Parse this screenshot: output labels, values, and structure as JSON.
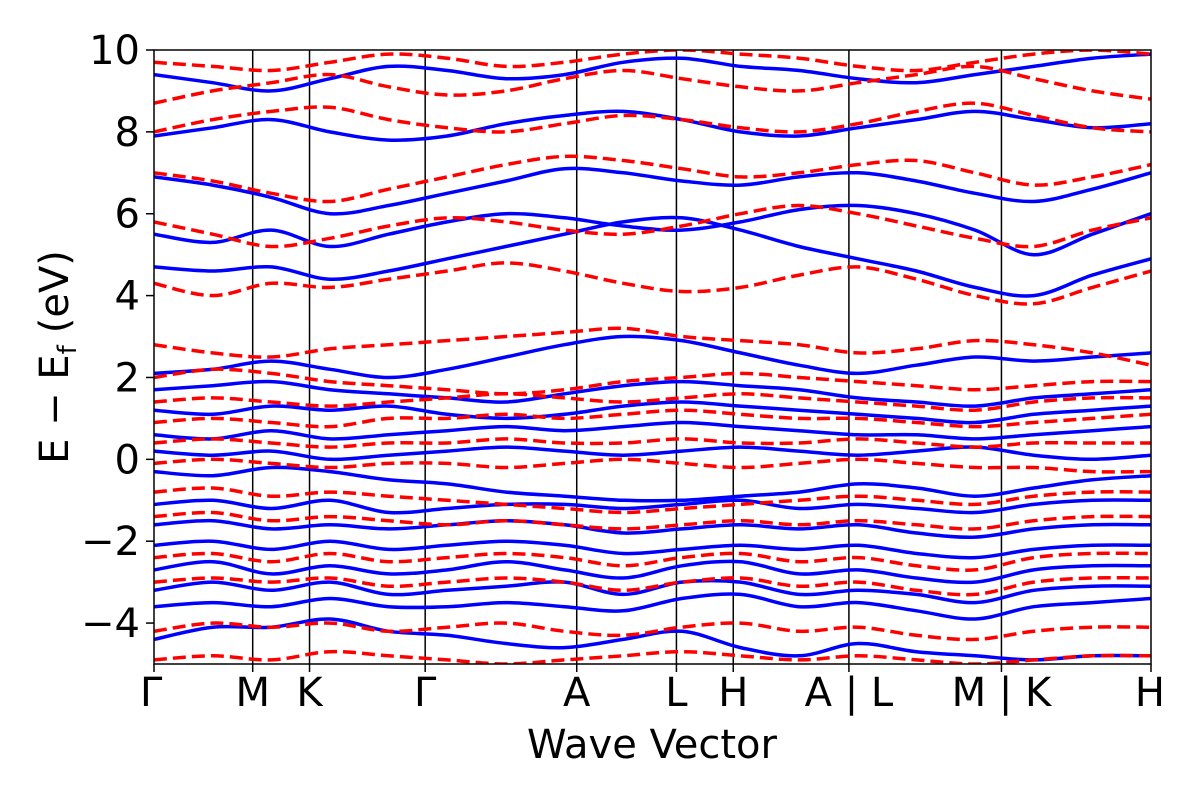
{
  "chart_data": {
    "type": "line",
    "xlabel": "Wave Vector",
    "ylabel": "E − E",
    "ylabel_subscript": "f",
    "ylabel_unit": "(eV)",
    "ylim": [
      -5,
      10
    ],
    "yticks": [
      {
        "value": -4,
        "label": "−4"
      },
      {
        "value": -2,
        "label": "−2"
      },
      {
        "value": 0,
        "label": "0"
      },
      {
        "value": 2,
        "label": "2"
      },
      {
        "value": 4,
        "label": "4"
      },
      {
        "value": 6,
        "label": "6"
      },
      {
        "value": 8,
        "label": "8"
      },
      {
        "value": 10,
        "label": "10"
      }
    ],
    "xlim": [
      0,
      1
    ],
    "kpoints": [
      {
        "label": "Γ",
        "x": 0.0
      },
      {
        "label": "M",
        "x": 0.099
      },
      {
        "label": "K",
        "x": 0.156
      },
      {
        "label": "Γ",
        "x": 0.272
      },
      {
        "label": "A",
        "x": 0.424
      },
      {
        "label": "L",
        "x": 0.524
      },
      {
        "label": "H",
        "x": 0.581
      },
      {
        "label": "A | L",
        "x": 0.697
      },
      {
        "label": "M | K",
        "x": 0.85
      },
      {
        "label": "H",
        "x": 1.0
      }
    ],
    "grid": false,
    "series": [
      {
        "style": "solid",
        "color": "#0000ff",
        "bands": [
          [
            -4.4,
            -4.1,
            -4.1,
            -3.9,
            -4.2,
            -4.3,
            -4.5,
            -4.6,
            -4.4,
            -4.2,
            -4.6,
            -4.8,
            -4.5,
            -4.7,
            -4.8,
            -4.9,
            -4.8,
            -4.8
          ],
          [
            -3.6,
            -3.5,
            -3.6,
            -3.4,
            -3.6,
            -3.6,
            -3.5,
            -3.6,
            -3.7,
            -3.4,
            -3.3,
            -3.6,
            -3.5,
            -3.7,
            -3.9,
            -3.6,
            -3.5,
            -3.4
          ],
          [
            -3.2,
            -3.0,
            -3.2,
            -3.0,
            -3.3,
            -3.2,
            -3.1,
            -3.0,
            -3.3,
            -3.0,
            -3.0,
            -3.3,
            -3.2,
            -3.3,
            -3.5,
            -3.2,
            -3.1,
            -3.1
          ],
          [
            -2.7,
            -2.5,
            -2.8,
            -2.6,
            -2.8,
            -2.7,
            -2.5,
            -2.7,
            -2.9,
            -2.6,
            -2.5,
            -2.8,
            -2.7,
            -2.9,
            -3.0,
            -2.7,
            -2.6,
            -2.6
          ],
          [
            -2.1,
            -2.0,
            -2.2,
            -2.0,
            -2.2,
            -2.1,
            -2.0,
            -2.1,
            -2.3,
            -2.2,
            -2.1,
            -2.2,
            -2.1,
            -2.3,
            -2.4,
            -2.2,
            -2.1,
            -2.1
          ],
          [
            -1.6,
            -1.5,
            -1.7,
            -1.6,
            -1.7,
            -1.6,
            -1.5,
            -1.6,
            -1.8,
            -1.7,
            -1.6,
            -1.7,
            -1.6,
            -1.8,
            -1.9,
            -1.7,
            -1.6,
            -1.6
          ],
          [
            -1.1,
            -1.0,
            -1.2,
            -1.0,
            -1.3,
            -1.2,
            -1.1,
            -1.1,
            -1.2,
            -1.1,
            -1.0,
            -1.2,
            -1.1,
            -1.2,
            -1.3,
            -1.1,
            -1.0,
            -1.0
          ],
          [
            -0.3,
            -0.4,
            -0.2,
            -0.3,
            -0.5,
            -0.6,
            -0.8,
            -0.9,
            -1.0,
            -1.0,
            -0.9,
            -0.8,
            -0.6,
            -0.7,
            -0.9,
            -0.7,
            -0.5,
            -0.4
          ],
          [
            0.2,
            0.1,
            0.2,
            0.0,
            0.1,
            0.2,
            0.3,
            0.2,
            0.1,
            0.2,
            0.3,
            0.2,
            0.1,
            0.2,
            0.3,
            0.1,
            0.0,
            0.1
          ],
          [
            0.6,
            0.5,
            0.7,
            0.5,
            0.6,
            0.7,
            0.8,
            0.7,
            0.8,
            0.9,
            0.8,
            0.7,
            0.6,
            0.6,
            0.5,
            0.6,
            0.7,
            0.8
          ],
          [
            1.2,
            1.1,
            1.3,
            1.2,
            1.3,
            1.1,
            1.0,
            1.1,
            1.3,
            1.4,
            1.3,
            1.2,
            1.1,
            1.0,
            0.9,
            1.1,
            1.2,
            1.3
          ],
          [
            1.7,
            1.8,
            1.9,
            1.7,
            1.6,
            1.5,
            1.4,
            1.6,
            1.8,
            1.9,
            1.8,
            1.7,
            1.5,
            1.4,
            1.3,
            1.5,
            1.6,
            1.7
          ],
          [
            2.1,
            2.2,
            2.4,
            2.2,
            2.0,
            2.2,
            2.5,
            2.8,
            3.0,
            2.9,
            2.6,
            2.3,
            2.1,
            2.3,
            2.5,
            2.4,
            2.5,
            2.6
          ],
          [
            4.7,
            4.6,
            4.7,
            4.4,
            4.6,
            4.9,
            5.2,
            5.5,
            5.8,
            5.9,
            5.6,
            5.2,
            4.9,
            4.6,
            4.2,
            4.0,
            4.5,
            4.9
          ],
          [
            5.5,
            5.3,
            5.6,
            5.2,
            5.5,
            5.8,
            6.0,
            5.9,
            5.7,
            5.6,
            5.8,
            6.1,
            6.2,
            6.0,
            5.6,
            5.0,
            5.5,
            6.0
          ],
          [
            6.9,
            6.7,
            6.4,
            6.0,
            6.2,
            6.5,
            6.8,
            7.1,
            7.0,
            6.8,
            6.7,
            6.9,
            7.0,
            6.8,
            6.5,
            6.3,
            6.6,
            7.0
          ],
          [
            7.9,
            8.1,
            8.3,
            8.0,
            7.8,
            7.9,
            8.2,
            8.4,
            8.5,
            8.3,
            8.0,
            7.9,
            8.1,
            8.3,
            8.5,
            8.3,
            8.1,
            8.2
          ],
          [
            9.4,
            9.2,
            9.0,
            9.3,
            9.6,
            9.5,
            9.3,
            9.4,
            9.7,
            9.8,
            9.6,
            9.5,
            9.3,
            9.2,
            9.4,
            9.6,
            9.8,
            9.9
          ]
        ]
      },
      {
        "style": "dashed",
        "color": "#ff0000",
        "bands": [
          [
            -4.9,
            -4.8,
            -4.9,
            -4.7,
            -4.8,
            -4.9,
            -5.0,
            -4.9,
            -4.8,
            -4.7,
            -4.8,
            -4.9,
            -4.8,
            -4.9,
            -5.0,
            -4.9,
            -4.8,
            -4.8
          ],
          [
            -4.2,
            -4.0,
            -4.1,
            -4.0,
            -4.2,
            -4.1,
            -4.0,
            -4.2,
            -4.3,
            -4.1,
            -4.0,
            -4.2,
            -4.1,
            -4.3,
            -4.4,
            -4.2,
            -4.1,
            -4.1
          ],
          [
            -3.0,
            -2.9,
            -3.0,
            -2.9,
            -3.1,
            -3.0,
            -2.9,
            -3.0,
            -3.2,
            -3.0,
            -2.9,
            -3.1,
            -3.0,
            -3.2,
            -3.3,
            -3.0,
            -2.9,
            -2.9
          ],
          [
            -2.4,
            -2.3,
            -2.5,
            -2.3,
            -2.5,
            -2.4,
            -2.3,
            -2.4,
            -2.6,
            -2.4,
            -2.3,
            -2.5,
            -2.4,
            -2.6,
            -2.7,
            -2.4,
            -2.3,
            -2.3
          ],
          [
            -1.4,
            -1.3,
            -1.5,
            -1.4,
            -1.5,
            -1.6,
            -1.5,
            -1.6,
            -1.7,
            -1.6,
            -1.5,
            -1.6,
            -1.5,
            -1.6,
            -1.7,
            -1.5,
            -1.4,
            -1.4
          ],
          [
            -0.8,
            -0.7,
            -0.9,
            -0.8,
            -0.9,
            -1.0,
            -1.1,
            -1.2,
            -1.3,
            -1.2,
            -1.1,
            -1.0,
            -0.9,
            -1.0,
            -1.1,
            -0.9,
            -0.8,
            -0.8
          ],
          [
            -0.1,
            0.0,
            -0.1,
            -0.2,
            -0.1,
            -0.1,
            -0.2,
            -0.1,
            0.0,
            -0.1,
            -0.2,
            -0.1,
            0.0,
            -0.1,
            -0.2,
            -0.2,
            -0.3,
            -0.3
          ],
          [
            0.4,
            0.5,
            0.4,
            0.3,
            0.4,
            0.4,
            0.5,
            0.4,
            0.4,
            0.5,
            0.4,
            0.4,
            0.5,
            0.4,
            0.3,
            0.4,
            0.4,
            0.4
          ],
          [
            0.9,
            1.0,
            0.9,
            0.8,
            1.0,
            1.0,
            1.1,
            1.0,
            1.1,
            1.2,
            1.1,
            1.0,
            1.0,
            0.9,
            0.8,
            0.9,
            1.0,
            1.1
          ],
          [
            1.4,
            1.5,
            1.4,
            1.3,
            1.4,
            1.5,
            1.6,
            1.5,
            1.4,
            1.5,
            1.6,
            1.5,
            1.4,
            1.3,
            1.2,
            1.4,
            1.5,
            1.5
          ],
          [
            2.0,
            2.2,
            2.1,
            1.9,
            1.8,
            1.7,
            1.6,
            1.7,
            1.9,
            2.0,
            2.1,
            2.0,
            1.9,
            1.8,
            1.7,
            1.8,
            1.9,
            1.9
          ],
          [
            2.8,
            2.6,
            2.5,
            2.7,
            2.8,
            2.9,
            3.0,
            3.1,
            3.2,
            3.0,
            2.9,
            2.8,
            2.6,
            2.7,
            2.9,
            2.8,
            2.6,
            2.3
          ],
          [
            4.3,
            4.0,
            4.3,
            4.2,
            4.4,
            4.6,
            4.8,
            4.6,
            4.3,
            4.1,
            4.2,
            4.5,
            4.7,
            4.4,
            4.0,
            3.8,
            4.2,
            4.6
          ],
          [
            5.8,
            5.5,
            5.2,
            5.4,
            5.7,
            5.9,
            5.8,
            5.6,
            5.5,
            5.7,
            6.0,
            6.2,
            6.0,
            5.7,
            5.4,
            5.2,
            5.6,
            5.9
          ],
          [
            7.0,
            6.8,
            6.5,
            6.3,
            6.6,
            6.9,
            7.2,
            7.4,
            7.3,
            7.1,
            6.9,
            7.0,
            7.2,
            7.3,
            7.0,
            6.7,
            6.9,
            7.2
          ],
          [
            8.0,
            8.3,
            8.5,
            8.6,
            8.3,
            8.1,
            8.0,
            8.2,
            8.4,
            8.3,
            8.1,
            8.0,
            8.2,
            8.5,
            8.7,
            8.4,
            8.1,
            8.0
          ],
          [
            8.7,
            9.0,
            9.2,
            9.4,
            9.1,
            8.9,
            9.0,
            9.3,
            9.5,
            9.3,
            9.1,
            9.0,
            9.2,
            9.4,
            9.6,
            9.3,
            9.0,
            8.8
          ],
          [
            9.7,
            9.6,
            9.5,
            9.7,
            9.9,
            9.8,
            9.6,
            9.7,
            9.9,
            10.0,
            9.9,
            9.8,
            9.6,
            9.5,
            9.7,
            9.9,
            10.0,
            9.9
          ]
        ]
      }
    ]
  }
}
